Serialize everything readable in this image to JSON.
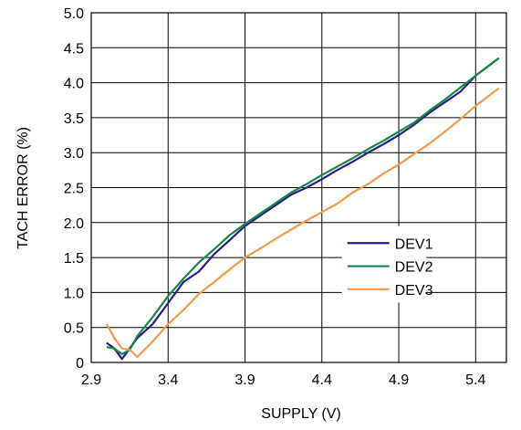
{
  "chart_data": {
    "type": "line",
    "title": "",
    "xlabel": "SUPPLY (V)",
    "ylabel": "TACH ERROR (%)",
    "xlim": [
      2.9,
      5.6
    ],
    "ylim": [
      0,
      5.0
    ],
    "x_ticks": [
      2.9,
      3.4,
      3.9,
      4.4,
      4.9,
      5.4
    ],
    "x_tick_labels": [
      "2.9",
      "3.4",
      "3.9",
      "4.4",
      "4.9",
      "5.4"
    ],
    "y_ticks": [
      0,
      0.5,
      1.0,
      1.5,
      2.0,
      2.5,
      3.0,
      3.5,
      4.0,
      4.5,
      5.0
    ],
    "y_tick_labels": [
      "0",
      "0.5",
      "1.0",
      "1.5",
      "2.0",
      "2.5",
      "3.0",
      "3.5",
      "4.0",
      "4.5",
      "5.0"
    ],
    "grid": true,
    "legend_position": "center-right",
    "series": [
      {
        "name": "DEV1",
        "color": "#2e1a87",
        "points": [
          [
            3.0,
            0.28
          ],
          [
            3.05,
            0.2
          ],
          [
            3.1,
            0.05
          ],
          [
            3.15,
            0.2
          ],
          [
            3.2,
            0.35
          ],
          [
            3.3,
            0.55
          ],
          [
            3.4,
            0.85
          ],
          [
            3.5,
            1.15
          ],
          [
            3.6,
            1.3
          ],
          [
            3.7,
            1.55
          ],
          [
            3.8,
            1.75
          ],
          [
            3.9,
            1.95
          ],
          [
            4.0,
            2.1
          ],
          [
            4.1,
            2.25
          ],
          [
            4.2,
            2.4
          ],
          [
            4.3,
            2.5
          ],
          [
            4.4,
            2.62
          ],
          [
            4.5,
            2.75
          ],
          [
            4.6,
            2.87
          ],
          [
            4.7,
            3.0
          ],
          [
            4.8,
            3.12
          ],
          [
            4.9,
            3.25
          ],
          [
            5.0,
            3.4
          ],
          [
            5.1,
            3.57
          ],
          [
            5.2,
            3.72
          ],
          [
            5.3,
            3.87
          ],
          [
            5.4,
            4.1
          ],
          [
            5.55,
            4.35
          ]
        ]
      },
      {
        "name": "DEV2",
        "color": "#17864a",
        "points": [
          [
            3.0,
            0.22
          ],
          [
            3.05,
            0.2
          ],
          [
            3.1,
            0.12
          ],
          [
            3.15,
            0.18
          ],
          [
            3.2,
            0.38
          ],
          [
            3.3,
            0.65
          ],
          [
            3.4,
            0.95
          ],
          [
            3.5,
            1.2
          ],
          [
            3.6,
            1.43
          ],
          [
            3.7,
            1.62
          ],
          [
            3.8,
            1.82
          ],
          [
            3.9,
            1.98
          ],
          [
            4.0,
            2.13
          ],
          [
            4.1,
            2.28
          ],
          [
            4.2,
            2.43
          ],
          [
            4.3,
            2.55
          ],
          [
            4.4,
            2.68
          ],
          [
            4.5,
            2.8
          ],
          [
            4.6,
            2.92
          ],
          [
            4.7,
            3.05
          ],
          [
            4.8,
            3.17
          ],
          [
            4.9,
            3.3
          ],
          [
            5.0,
            3.43
          ],
          [
            5.1,
            3.6
          ],
          [
            5.2,
            3.76
          ],
          [
            5.3,
            3.93
          ],
          [
            5.4,
            4.1
          ],
          [
            5.55,
            4.35
          ]
        ]
      },
      {
        "name": "DEV3",
        "color": "#f39a4c",
        "points": [
          [
            3.0,
            0.55
          ],
          [
            3.05,
            0.35
          ],
          [
            3.1,
            0.2
          ],
          [
            3.15,
            0.18
          ],
          [
            3.2,
            0.08
          ],
          [
            3.3,
            0.3
          ],
          [
            3.4,
            0.55
          ],
          [
            3.5,
            0.75
          ],
          [
            3.6,
            0.98
          ],
          [
            3.7,
            1.15
          ],
          [
            3.8,
            1.33
          ],
          [
            3.9,
            1.5
          ],
          [
            4.0,
            1.63
          ],
          [
            4.1,
            1.77
          ],
          [
            4.2,
            1.9
          ],
          [
            4.3,
            2.03
          ],
          [
            4.4,
            2.15
          ],
          [
            4.5,
            2.27
          ],
          [
            4.6,
            2.43
          ],
          [
            4.7,
            2.55
          ],
          [
            4.8,
            2.7
          ],
          [
            4.9,
            2.83
          ],
          [
            5.0,
            2.98
          ],
          [
            5.1,
            3.13
          ],
          [
            5.2,
            3.3
          ],
          [
            5.3,
            3.48
          ],
          [
            5.4,
            3.67
          ],
          [
            5.55,
            3.92
          ]
        ]
      }
    ]
  }
}
